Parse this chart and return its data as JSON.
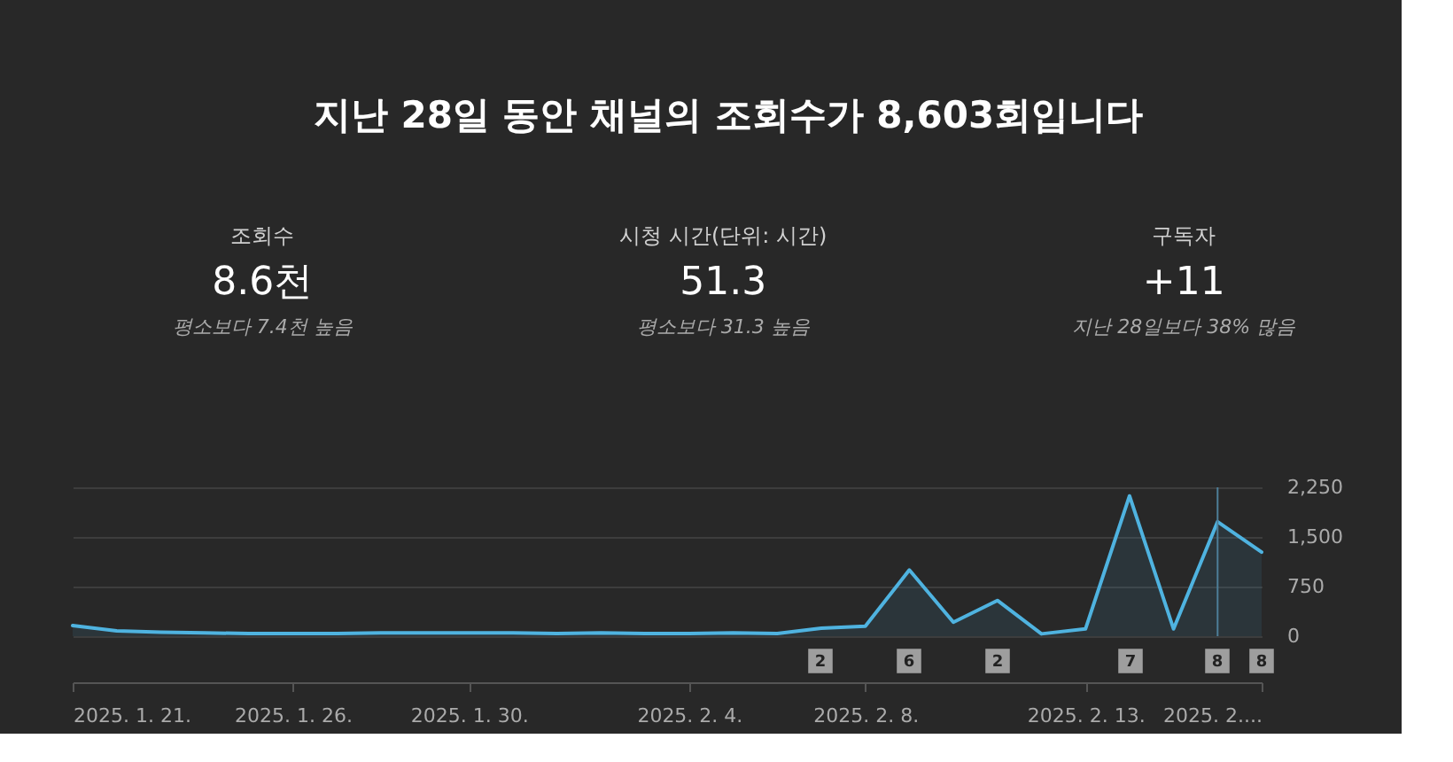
{
  "chart_data": [
    {
      "type": "other",
      "title": "지난 28일 동안 채널의 조회수가 8,603회입니다",
      "annotations": [
        "조회수",
        "8.6천",
        "평소보다 7.4천 높음",
        "시청 시간(단위: 시간)",
        "51.3",
        "평소보다 31.3 높음",
        "구독자",
        "+11",
        "지난 28일보다 38% 많음"
      ]
    },
    {
      "type": "area",
      "x": [
        "2025-01-21",
        "2025-01-22",
        "2025-01-23",
        "2025-01-24",
        "2025-01-25",
        "2025-01-26",
        "2025-01-27",
        "2025-01-28",
        "2025-01-29",
        "2025-01-30",
        "2025-01-31",
        "2025-02-01",
        "2025-02-02",
        "2025-02-03",
        "2025-02-04",
        "2025-02-05",
        "2025-02-06",
        "2025-02-07",
        "2025-02-08",
        "2025-02-09",
        "2025-02-10",
        "2025-02-11",
        "2025-02-12",
        "2025-02-13",
        "2025-02-14",
        "2025-02-15",
        "2025-02-16",
        "2025-02-17"
      ],
      "series": [
        {
          "color": "#4fb3e0",
          "values": [
            160,
            80,
            60,
            50,
            40,
            40,
            40,
            50,
            50,
            50,
            50,
            40,
            50,
            40,
            40,
            50,
            40,
            120,
            150,
            1000,
            210,
            540,
            35,
            110,
            2120,
            110,
            1730,
            1270
          ]
        }
      ],
      "xlim": [
        "2025-01-21",
        "2025-02-17"
      ],
      "xticks": [
        {
          "value": "2025-01-21",
          "label": "2025. 1. 21."
        },
        {
          "value": "2025-01-26",
          "label": "2025. 1. 26."
        },
        {
          "value": "2025-01-30",
          "label": "2025. 1. 30."
        },
        {
          "value": "2025-02-04",
          "label": "2025. 2. 4."
        },
        {
          "value": "2025-02-08",
          "label": "2025. 2. 8."
        },
        {
          "value": "2025-02-13",
          "label": "2025. 2. 13."
        },
        {
          "value": "2025-02-17",
          "label": "2025. 2...."
        }
      ],
      "ylim": [
        0,
        2250
      ],
      "yticks": [
        0,
        750,
        {
          "value": 1500,
          "label": "1,500"
        },
        {
          "value": 2250,
          "label": "2,250"
        }
      ],
      "grid": "y",
      "ref_lines": [
        {
          "axis": "x",
          "value": "2025-02-16",
          "color": "#4e7f99"
        }
      ],
      "annotations": [
        "2",
        "6",
        "2",
        "7",
        "8",
        "8"
      ]
    }
  ]
}
